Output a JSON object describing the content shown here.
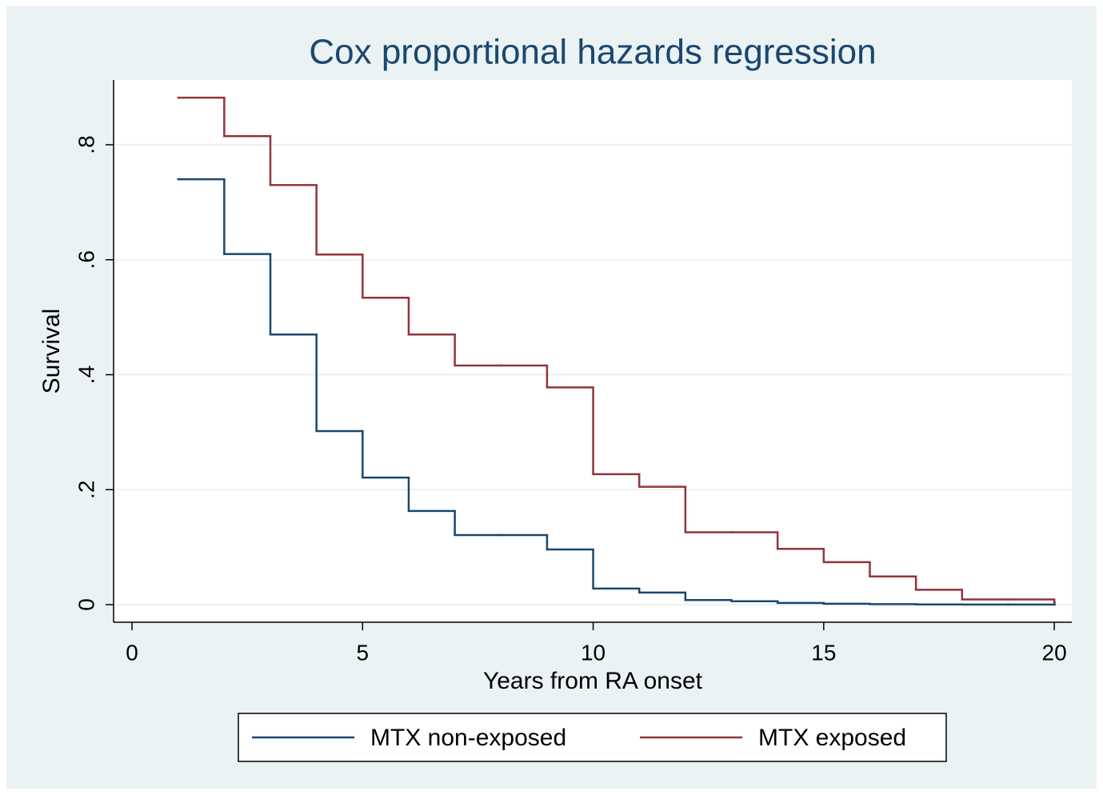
{
  "chart_data": {
    "type": "line",
    "line_style": "step",
    "title": "Cox proportional hazards regression",
    "x_label": "Years from RA onset",
    "y_label": "Survival",
    "x": [
      1,
      2,
      3,
      4,
      5,
      6,
      7,
      8,
      9,
      10,
      11,
      12,
      13,
      14,
      15,
      16,
      17,
      18,
      19,
      20
    ],
    "series": [
      {
        "name": "MTX non-exposed",
        "color": "#1a476f",
        "values": [
          0.74,
          0.61,
          0.47,
          0.302,
          0.221,
          0.163,
          0.121,
          0.121,
          0.096,
          0.028,
          0.021,
          0.008,
          0.006,
          0.003,
          0.0015,
          0.0008,
          0.0004,
          0.0002,
          0.0001,
          0.0001
        ]
      },
      {
        "name": "MTX exposed",
        "color": "#90353b",
        "values": [
          0.882,
          0.815,
          0.73,
          0.609,
          0.534,
          0.47,
          0.416,
          0.416,
          0.378,
          0.227,
          0.205,
          0.126,
          0.126,
          0.097,
          0.074,
          0.049,
          0.026,
          0.009,
          0.009,
          0.004
        ]
      }
    ],
    "xlim": [
      -0.4,
      20.38
    ],
    "ylim": [
      -0.0306,
      0.9127
    ],
    "xticks": [
      0,
      5,
      10,
      15,
      20
    ],
    "yticks": [
      0,
      {
        "value": 0.2,
        "label": ".2"
      },
      {
        "value": 0.4,
        "label": ".4"
      },
      {
        "value": 0.6,
        "label": ".6"
      },
      {
        "value": 0.8,
        "label": ".8"
      }
    ],
    "grid": true,
    "legend": "bottom"
  }
}
